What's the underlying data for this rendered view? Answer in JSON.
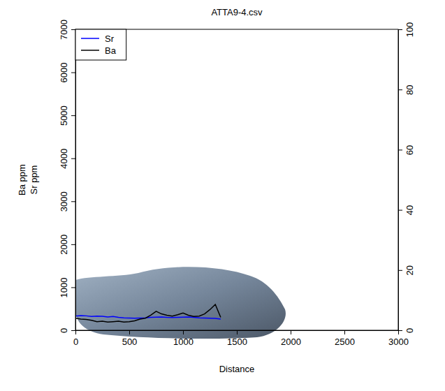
{
  "chart_data": {
    "type": "line",
    "title": "ATTA9-4.csv",
    "x_label": "Distance",
    "y_label": [
      "Ba ppm",
      "Sr ppm"
    ],
    "x": [
      0,
      50,
      100,
      150,
      200,
      250,
      300,
      350,
      400,
      450,
      500,
      550,
      600,
      650,
      700,
      750,
      800,
      850,
      900,
      950,
      1000,
      1050,
      1100,
      1150,
      1200,
      1250,
      1300,
      1350
    ],
    "series": [
      {
        "name": "Sr",
        "color": "#0000ff",
        "values": [
          330,
          340,
          335,
          320,
          330,
          325,
          310,
          320,
          300,
          290,
          285,
          280,
          285,
          290,
          300,
          305,
          310,
          300,
          295,
          300,
          305,
          310,
          300,
          290,
          285,
          280,
          275,
          260
        ]
      },
      {
        "name": "Ba",
        "color": "#000000",
        "values": [
          280,
          260,
          250,
          230,
          200,
          210,
          190,
          200,
          210,
          190,
          200,
          220,
          260,
          280,
          350,
          440,
          380,
          350,
          330,
          360,
          400,
          350,
          320,
          330,
          380,
          480,
          600,
          300
        ]
      }
    ],
    "xlim": [
      0,
      3000
    ],
    "xticks": [
      0,
      500,
      1000,
      1500,
      2000,
      2500,
      3000
    ],
    "ylim": [
      0,
      7000
    ],
    "yticks": [
      0,
      1000,
      2000,
      3000,
      4000,
      5000,
      6000,
      7000
    ],
    "y2lim": [
      0,
      100
    ],
    "y2ticks": [
      0,
      20,
      40,
      60,
      80,
      100
    ],
    "legend": "top-left"
  }
}
